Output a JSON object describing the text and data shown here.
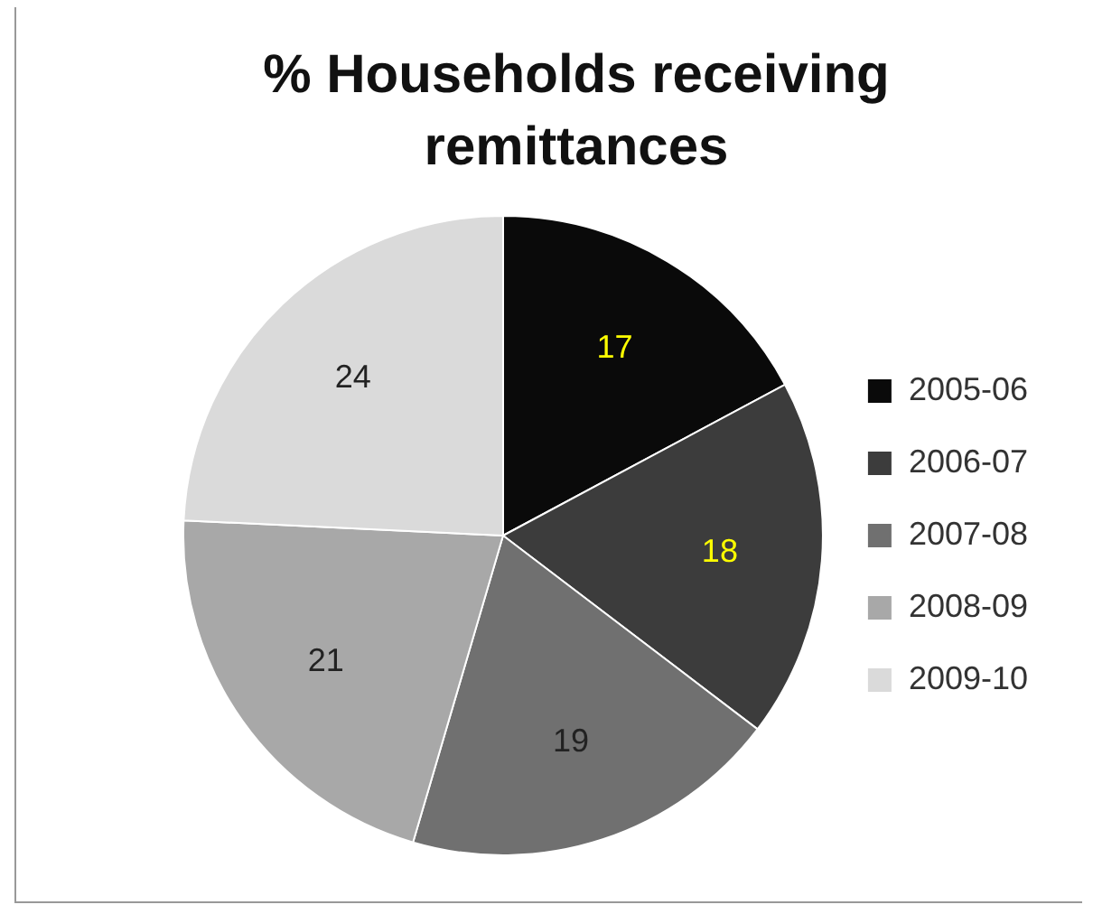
{
  "chart_data": {
    "type": "pie",
    "title": "% Households receiving remittances",
    "categories": [
      "2005-06",
      "2006-07",
      "2007-08",
      "2008-09",
      "2009-10"
    ],
    "values": [
      17,
      18,
      19,
      21,
      24
    ],
    "colors": [
      "#0a0a0a",
      "#3c3c3c",
      "#707070",
      "#a8a8a8",
      "#dadada"
    ],
    "data_labels": true,
    "legend": "right"
  }
}
